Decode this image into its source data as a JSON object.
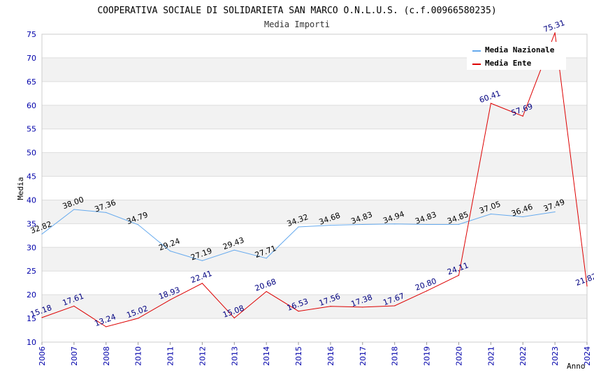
{
  "chart_data": {
    "type": "line",
    "title": "COOPERATIVA SOCIALE DI SOLIDARIETA SAN MARCO O.N.L.U.S. (c.f.00966580235)",
    "subtitle": "Media Importi",
    "xlabel": "Anno",
    "ylabel": "Media",
    "ylim": [
      10,
      75
    ],
    "yticks": [
      "10",
      "15",
      "20",
      "25",
      "30",
      "35",
      "40",
      "45",
      "50",
      "55",
      "60",
      "65",
      "70",
      "75"
    ],
    "categories": [
      "2006",
      "2007",
      "2008",
      "2010",
      "2011",
      "2012",
      "2013",
      "2014",
      "2015",
      "2016",
      "2017",
      "2018",
      "2019",
      "2020",
      "2021",
      "2022",
      "2023",
      "2024"
    ],
    "grid": true,
    "legend_position": "top-right",
    "series": [
      {
        "name": "Media Nazionale",
        "color": "#66aaee",
        "label_color": "#000000",
        "values": [
          32.82,
          38.0,
          37.36,
          34.79,
          29.24,
          27.19,
          29.43,
          27.71,
          34.32,
          34.68,
          34.83,
          34.94,
          34.83,
          34.85,
          37.05,
          36.46,
          37.49,
          null
        ],
        "labels": [
          "32.82",
          "38.00",
          "37.36",
          "34.79",
          "29.24",
          "27.19",
          "29.43",
          "27.71",
          "34.32",
          "34.68",
          "34.83",
          "34.94",
          "34.83",
          "34.85",
          "37.05",
          "36.46",
          "37.49",
          ""
        ]
      },
      {
        "name": "Media Ente",
        "color": "#dd0000",
        "label_color": "#000080",
        "values": [
          15.18,
          17.61,
          13.24,
          15.02,
          18.93,
          22.41,
          15.08,
          20.68,
          16.53,
          17.56,
          17.38,
          17.67,
          20.8,
          24.11,
          60.41,
          57.69,
          75.31,
          21.82
        ],
        "labels": [
          "15.18",
          "17.61",
          "13.24",
          "15.02",
          "18.93",
          "22.41",
          "15.08",
          "20.68",
          "16.53",
          "17.56",
          "17.38",
          "17.67",
          "20.80",
          "24.11",
          "60.41",
          "57.69",
          "75.31",
          "21.82"
        ]
      }
    ]
  }
}
